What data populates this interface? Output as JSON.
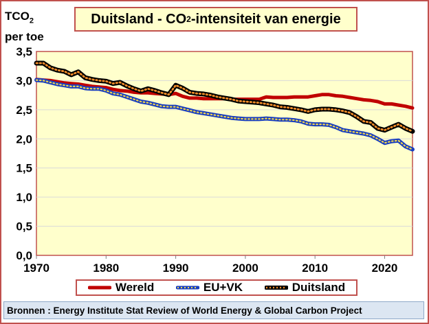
{
  "title": "Duitsland - CO",
  "title_sub": "2",
  "title_rest": "-intensiteit van energie",
  "y_title_line1": "TCO",
  "y_title_sub": "2",
  "y_title_line2": "per toe",
  "source": "Bronnen : Energy Institute Stat Review of World Energy & Global Carbon Project",
  "legend": {
    "wereld": "Wereld",
    "euvk": "EU+VK",
    "duitsland": "Duitsland"
  },
  "colors": {
    "wereld": "#c00000",
    "euvk_line": "#1a3fbf",
    "euvk_dot": "#f2d64b",
    "duitsland_line": "#000000",
    "duitsland_dot": "#f28c28",
    "plot_bg": "#ffffcc",
    "frame": "#c0504d"
  },
  "chart_data": {
    "type": "line",
    "title": "Duitsland - CO2-intensiteit van energie",
    "xlabel": "",
    "ylabel": "TCO2 per toe",
    "xlim": [
      1970,
      2024
    ],
    "ylim": [
      0,
      3.5
    ],
    "xticks": [
      1970,
      1980,
      1990,
      2000,
      2010,
      2020
    ],
    "yticks": [
      0,
      0.5,
      1.0,
      1.5,
      2.0,
      2.5,
      3.0,
      3.5
    ],
    "ytick_labels": [
      "0,0",
      "0,5",
      "1,0",
      "1,5",
      "2,0",
      "2,5",
      "3,0",
      "3,5"
    ],
    "x": [
      1970,
      1971,
      1972,
      1973,
      1974,
      1975,
      1976,
      1977,
      1978,
      1979,
      1980,
      1981,
      1982,
      1983,
      1984,
      1985,
      1986,
      1987,
      1988,
      1989,
      1990,
      1991,
      1992,
      1993,
      1994,
      1995,
      1996,
      1997,
      1998,
      1999,
      2000,
      2001,
      2002,
      2003,
      2004,
      2005,
      2006,
      2007,
      2008,
      2009,
      2010,
      2011,
      2012,
      2013,
      2014,
      2015,
      2016,
      2017,
      2018,
      2019,
      2020,
      2021,
      2022,
      2023,
      2024
    ],
    "series": [
      {
        "name": "Wereld",
        "values": [
          3.02,
          3.01,
          3.0,
          2.98,
          2.96,
          2.95,
          2.94,
          2.92,
          2.9,
          2.89,
          2.88,
          2.85,
          2.83,
          2.82,
          2.8,
          2.79,
          2.79,
          2.78,
          2.77,
          2.76,
          2.78,
          2.73,
          2.7,
          2.7,
          2.69,
          2.69,
          2.69,
          2.69,
          2.68,
          2.68,
          2.68,
          2.68,
          2.68,
          2.72,
          2.71,
          2.71,
          2.71,
          2.72,
          2.72,
          2.72,
          2.74,
          2.76,
          2.76,
          2.74,
          2.73,
          2.71,
          2.69,
          2.67,
          2.66,
          2.64,
          2.6,
          2.6,
          2.58,
          2.56,
          2.53
        ]
      },
      {
        "name": "EU+VK",
        "values": [
          3.01,
          3.0,
          2.97,
          2.94,
          2.92,
          2.9,
          2.9,
          2.87,
          2.86,
          2.86,
          2.83,
          2.78,
          2.76,
          2.72,
          2.68,
          2.64,
          2.62,
          2.59,
          2.56,
          2.55,
          2.55,
          2.52,
          2.49,
          2.46,
          2.44,
          2.42,
          2.4,
          2.38,
          2.36,
          2.35,
          2.34,
          2.34,
          2.34,
          2.35,
          2.34,
          2.33,
          2.33,
          2.32,
          2.3,
          2.26,
          2.25,
          2.25,
          2.24,
          2.2,
          2.15,
          2.13,
          2.11,
          2.09,
          2.06,
          2.0,
          1.93,
          1.96,
          1.97,
          1.87,
          1.82
        ]
      },
      {
        "name": "Duitsland",
        "values": [
          3.3,
          3.3,
          3.22,
          3.18,
          3.16,
          3.1,
          3.15,
          3.05,
          3.02,
          3.0,
          2.99,
          2.95,
          2.97,
          2.91,
          2.86,
          2.82,
          2.86,
          2.83,
          2.79,
          2.76,
          2.92,
          2.87,
          2.8,
          2.78,
          2.77,
          2.75,
          2.72,
          2.7,
          2.68,
          2.65,
          2.64,
          2.63,
          2.62,
          2.6,
          2.58,
          2.55,
          2.54,
          2.52,
          2.5,
          2.47,
          2.5,
          2.51,
          2.51,
          2.5,
          2.48,
          2.45,
          2.38,
          2.3,
          2.28,
          2.18,
          2.15,
          2.2,
          2.25,
          2.18,
          2.13
        ]
      }
    ],
    "legend_position": "bottom"
  }
}
